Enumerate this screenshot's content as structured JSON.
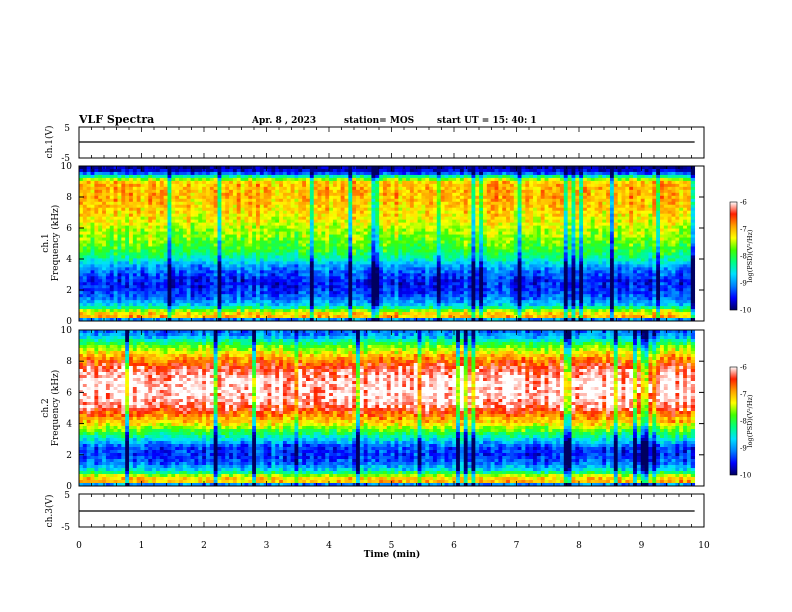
{
  "header": {
    "title": "VLF Spectra",
    "date": "Apr. 8  , 2023",
    "station": "station= MOS",
    "start_ut": "start  UT  =   15: 40: 1"
  },
  "colors": {
    "frame": "#000000",
    "colormap": [
      "#000060",
      "#0000ff",
      "#0080ff",
      "#00e0ff",
      "#00ff80",
      "#40ff00",
      "#ffff00",
      "#ffa000",
      "#ff2000",
      "#ffffff"
    ]
  },
  "chart_data": [
    {
      "type": "line",
      "name": "ch1-voltage",
      "ylabel": "ch.1(V)",
      "xlim": [
        0,
        10
      ],
      "ylim": [
        -5,
        5
      ],
      "yticks": [
        "5",
        "-5"
      ],
      "series": [
        {
          "x": [
            0,
            10
          ],
          "y": [
            0,
            0
          ]
        }
      ]
    },
    {
      "type": "heatmap",
      "name": "ch1-spectrogram",
      "ylabel": "ch.1\nFrequency (kHz)",
      "xlim": [
        0,
        10
      ],
      "xdata_end_min": 9.85,
      "ylim": [
        0,
        10
      ],
      "yticks": [
        "0",
        "2",
        "4",
        "6",
        "8",
        "10"
      ],
      "colorbar": {
        "label": "log(PSD)(V²/Hz)",
        "range": [
          -10,
          -6
        ],
        "ticks": [
          "-6",
          "-7",
          "-8",
          "-9",
          "-10"
        ]
      },
      "profile_freq_khz": [
        0,
        0.3,
        0.6,
        1.0,
        1.5,
        2.0,
        2.5,
        3.0,
        3.5,
        4.0,
        4.5,
        5.0,
        5.5,
        6.0,
        6.5,
        7.0,
        7.5,
        8.0,
        8.5,
        9.0,
        9.3,
        9.6,
        10.0
      ],
      "profile_logpsd": [
        -10,
        -6.9,
        -7.4,
        -8.7,
        -9.2,
        -9.4,
        -9.5,
        -9.3,
        -9.0,
        -8.4,
        -8.0,
        -7.8,
        -7.6,
        -7.5,
        -7.3,
        -7.2,
        -7.1,
        -7.0,
        -7.0,
        -7.1,
        -8.2,
        -9.6,
        -9.9
      ]
    },
    {
      "type": "heatmap",
      "name": "ch2-spectrogram",
      "ylabel": "ch.2\nFrequency (kHz)",
      "xlim": [
        0,
        10
      ],
      "xdata_end_min": 9.85,
      "ylim": [
        0,
        10
      ],
      "yticks": [
        "0",
        "2",
        "4",
        "6",
        "8",
        "10"
      ],
      "colorbar": {
        "label": "log(PSD)(V²/Hz)",
        "range": [
          -10,
          -6
        ],
        "ticks": [
          "-6",
          "-7",
          "-8",
          "-9",
          "-10"
        ]
      },
      "profile_freq_khz": [
        0,
        0.3,
        0.6,
        1.0,
        1.5,
        2.0,
        2.5,
        3.0,
        3.5,
        4.0,
        4.5,
        5.0,
        5.5,
        6.0,
        6.5,
        7.0,
        7.5,
        8.0,
        8.5,
        9.0,
        9.3,
        9.6,
        10.0
      ],
      "profile_logpsd": [
        -10,
        -6.9,
        -7.3,
        -8.6,
        -9.2,
        -9.4,
        -9.3,
        -8.6,
        -7.9,
        -7.2,
        -6.8,
        -6.3,
        -6.1,
        -6.0,
        -6.0,
        -6.1,
        -6.3,
        -6.7,
        -7.2,
        -7.8,
        -8.3,
        -8.9,
        -9.2
      ]
    },
    {
      "type": "line",
      "name": "ch3-voltage",
      "ylabel": "ch.3(V)",
      "xlim": [
        0,
        10
      ],
      "ylim": [
        -5,
        5
      ],
      "yticks": [
        "5",
        "-5"
      ],
      "series": [
        {
          "x": [
            0,
            10
          ],
          "y": [
            0,
            0
          ]
        }
      ]
    }
  ],
  "xaxis": {
    "label": "Time  (min)",
    "ticks": [
      "0",
      "1",
      "2",
      "3",
      "4",
      "5",
      "6",
      "7",
      "8",
      "9",
      "10"
    ]
  }
}
